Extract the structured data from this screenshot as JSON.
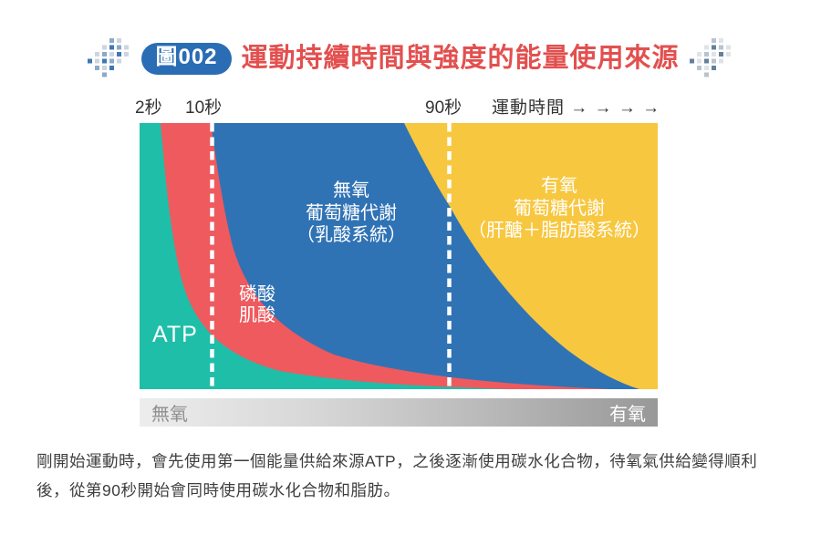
{
  "header": {
    "badge_label": "圖002",
    "title": "運動持續時間與強度的能量使用來源",
    "title_color": "#e2504f",
    "badge_color": "#2a6db5"
  },
  "axis": {
    "tick_2s": "2秒",
    "tick_10s": "10秒",
    "tick_90s": "90秒",
    "time_label": "運動時間 → → → →"
  },
  "regions": {
    "atp": {
      "label": "ATP",
      "color": "#1fbea9"
    },
    "cp": {
      "line1": "磷酸",
      "line2": "肌酸",
      "color": "#ee5a5e"
    },
    "anaerobic": {
      "line1": "無氧",
      "line2": "葡萄糖代謝",
      "line3": "（乳酸系統）",
      "color": "#3073b5"
    },
    "aerobic": {
      "line1": "有氧",
      "line2": "葡萄糖代謝",
      "line3": "（肝醣＋脂肪酸系統）",
      "color": "#f7c73f"
    }
  },
  "gradient_bar": {
    "left_label": "無氧",
    "right_label": "有氧"
  },
  "caption": {
    "line1": "剛開始運動時，會先使用第一個能量供給來源ATP，之後逐漸使用碳水化合物，待氧氣供給變得順利",
    "line2": "後，從第90秒開始會同時使用碳水化合物和脂肪。"
  },
  "chart_data": {
    "type": "area",
    "title": "運動持續時間與強度的能量使用來源",
    "xlabel": "運動時間",
    "x_ticks": [
      "2秒",
      "10秒",
      "90秒"
    ],
    "dashed_markers_at": [
      "10秒",
      "90秒"
    ],
    "intensity_axis": {
      "left": "無氧",
      "right": "有氧",
      "style": "gray-gradient-bar"
    },
    "legend_position": "in-area-labels",
    "grid": false,
    "series": [
      {
        "name": "ATP",
        "color": "#1fbea9",
        "share_pct": {
          "start": 100,
          "2s": 99,
          "10s": 27,
          "90s": 2,
          "end": 0
        }
      },
      {
        "name": "磷酸肌酸",
        "color": "#ee5a5e",
        "share_pct": {
          "start": 0,
          "2s": 1,
          "10s": 73,
          "90s": 2,
          "end": 0
        }
      },
      {
        "name": "無氧葡萄糖代謝（乳酸系統）",
        "color": "#3073b5",
        "share_pct": {
          "start": 0,
          "2s": 0,
          "10s": 0,
          "90s": 64,
          "end": 0
        }
      },
      {
        "name": "有氧葡萄糖代謝（肝醣＋脂肪酸系統）",
        "color": "#f7c73f",
        "share_pct": {
          "start": 0,
          "2s": 0,
          "10s": 0,
          "90s": 32,
          "end": 100
        }
      }
    ]
  }
}
